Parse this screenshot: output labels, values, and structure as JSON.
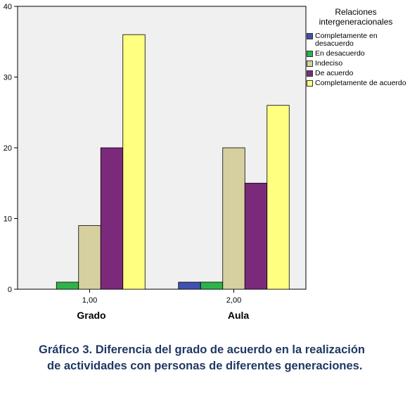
{
  "chart_data": {
    "type": "bar",
    "categories": [
      "1,00",
      "2,00"
    ],
    "category_names": [
      "Grado",
      "Aula"
    ],
    "series": [
      {
        "name": "Completamente en desacuerdo",
        "values": [
          0,
          1
        ],
        "color": "#3f51b0"
      },
      {
        "name": "En desacuerdo",
        "values": [
          1,
          1
        ],
        "color": "#2db34a"
      },
      {
        "name": "Indeciso",
        "values": [
          9,
          20
        ],
        "color": "#d6d0a0"
      },
      {
        "name": "De acuerdo",
        "values": [
          20,
          15
        ],
        "color": "#7b2a7b"
      },
      {
        "name": "Completamente de acuerdo",
        "values": [
          36,
          26
        ],
        "color": "#ffff80"
      }
    ],
    "legend_title": "Relaciones intergeneracionales",
    "legend_title_lines": [
      "Relaciones",
      "intergeneracionales"
    ],
    "legend_position": "right",
    "ylim": [
      0,
      40
    ],
    "yticks": [
      0,
      10,
      20,
      30,
      40
    ],
    "plot_background": "#f0f0f0",
    "grid": false
  },
  "caption": {
    "label": "Gráfico 3.",
    "line1": "Diferencia del grado de acuerdo en la realización",
    "line2": "de actividades con personas de diferentes generaciones."
  }
}
